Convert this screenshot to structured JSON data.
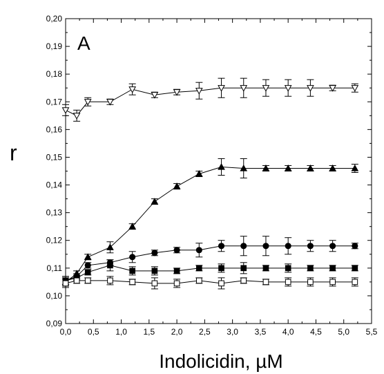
{
  "chart_data": {
    "type": "line",
    "panel_label": "A",
    "xlabel": "Indolicidin, µM",
    "ylabel": "r",
    "xlim": [
      0.0,
      5.5
    ],
    "ylim": [
      0.09,
      0.2
    ],
    "x_ticks": [
      0.0,
      0.5,
      1.0,
      1.5,
      2.0,
      2.5,
      3.0,
      3.5,
      4.0,
      4.5,
      5.0,
      5.5
    ],
    "x_tick_labels": [
      "0,0",
      "0,5",
      "1,0",
      "1,5",
      "2,0",
      "2,5",
      "3,0",
      "3,5",
      "4,0",
      "4,5",
      "5,0",
      "5,5"
    ],
    "y_ticks": [
      0.09,
      0.1,
      0.11,
      0.12,
      0.13,
      0.14,
      0.15,
      0.16,
      0.17,
      0.18,
      0.19,
      0.2
    ],
    "y_tick_labels": [
      "0,09",
      "0,10",
      "0,11",
      "0,12",
      "0,13",
      "0,14",
      "0,15",
      "0,16",
      "0,17",
      "0,18",
      "0,19",
      "0,20"
    ],
    "grid": false,
    "legend": "none",
    "series": [
      {
        "marker": "triangle-down-open",
        "x": [
          0.0,
          0.2,
          0.4,
          0.8,
          1.2,
          1.6,
          2.0,
          2.4,
          2.8,
          3.2,
          3.6,
          4.0,
          4.4,
          4.8,
          5.2
        ],
        "y": [
          0.167,
          0.165,
          0.17,
          0.17,
          0.1745,
          0.1725,
          0.1735,
          0.174,
          0.175,
          0.175,
          0.175,
          0.175,
          0.175,
          0.175,
          0.175
        ],
        "err": [
          0.002,
          0.002,
          0.0015,
          0.001,
          0.002,
          0.001,
          0.001,
          0.003,
          0.0035,
          0.0035,
          0.003,
          0.003,
          0.003,
          0.001,
          0.0015
        ]
      },
      {
        "marker": "triangle-up-filled",
        "x": [
          0.0,
          0.2,
          0.4,
          0.8,
          1.2,
          1.6,
          2.0,
          2.4,
          2.8,
          3.2,
          3.6,
          4.0,
          4.4,
          4.8,
          5.2
        ],
        "y": [
          0.105,
          0.108,
          0.114,
          0.1175,
          0.125,
          0.134,
          0.1395,
          0.144,
          0.1465,
          0.146,
          0.146,
          0.146,
          0.146,
          0.146,
          0.146
        ],
        "err": [
          0.0015,
          0.001,
          0.001,
          0.002,
          0.001,
          0.001,
          0.001,
          0.001,
          0.003,
          0.0035,
          0.001,
          0.001,
          0.001,
          0.001,
          0.0015
        ]
      },
      {
        "marker": "circle-filled",
        "x": [
          0.0,
          0.2,
          0.4,
          0.8,
          1.2,
          1.6,
          2.0,
          2.4,
          2.8,
          3.2,
          3.6,
          4.0,
          4.4,
          4.8,
          5.2
        ],
        "y": [
          0.1055,
          0.107,
          0.111,
          0.112,
          0.114,
          0.1155,
          0.1165,
          0.1165,
          0.118,
          0.118,
          0.118,
          0.118,
          0.118,
          0.118,
          0.118
        ],
        "err": [
          0.0015,
          0.001,
          0.001,
          0.001,
          0.002,
          0.001,
          0.001,
          0.0025,
          0.002,
          0.0035,
          0.0035,
          0.003,
          0.002,
          0.002,
          0.001
        ]
      },
      {
        "marker": "square-filled",
        "x": [
          0.0,
          0.2,
          0.4,
          0.8,
          1.2,
          1.6,
          2.0,
          2.4,
          2.8,
          3.2,
          3.6,
          4.0,
          4.4,
          4.8,
          5.2
        ],
        "y": [
          0.1055,
          0.1065,
          0.1085,
          0.111,
          0.109,
          0.109,
          0.109,
          0.11,
          0.11,
          0.11,
          0.11,
          0.11,
          0.11,
          0.11,
          0.11
        ],
        "err": [
          0.0015,
          0.001,
          0.001,
          0.002,
          0.0015,
          0.0015,
          0.001,
          0.001,
          0.0015,
          0.002,
          0.001,
          0.0015,
          0.001,
          0.001,
          0.001
        ]
      },
      {
        "marker": "square-open",
        "x": [
          0.0,
          0.2,
          0.4,
          0.8,
          1.2,
          1.6,
          2.0,
          2.4,
          2.8,
          3.2,
          3.6,
          4.0,
          4.4,
          4.8,
          5.2
        ],
        "y": [
          0.1045,
          0.1055,
          0.1055,
          0.1055,
          0.105,
          0.1045,
          0.1045,
          0.1055,
          0.1045,
          0.1055,
          0.105,
          0.105,
          0.105,
          0.105,
          0.105
        ],
        "err": [
          0.0015,
          0.001,
          0.001,
          0.0015,
          0.001,
          0.002,
          0.0015,
          0.001,
          0.002,
          0.001,
          0.001,
          0.0015,
          0.0015,
          0.0015,
          0.0015
        ]
      }
    ]
  }
}
